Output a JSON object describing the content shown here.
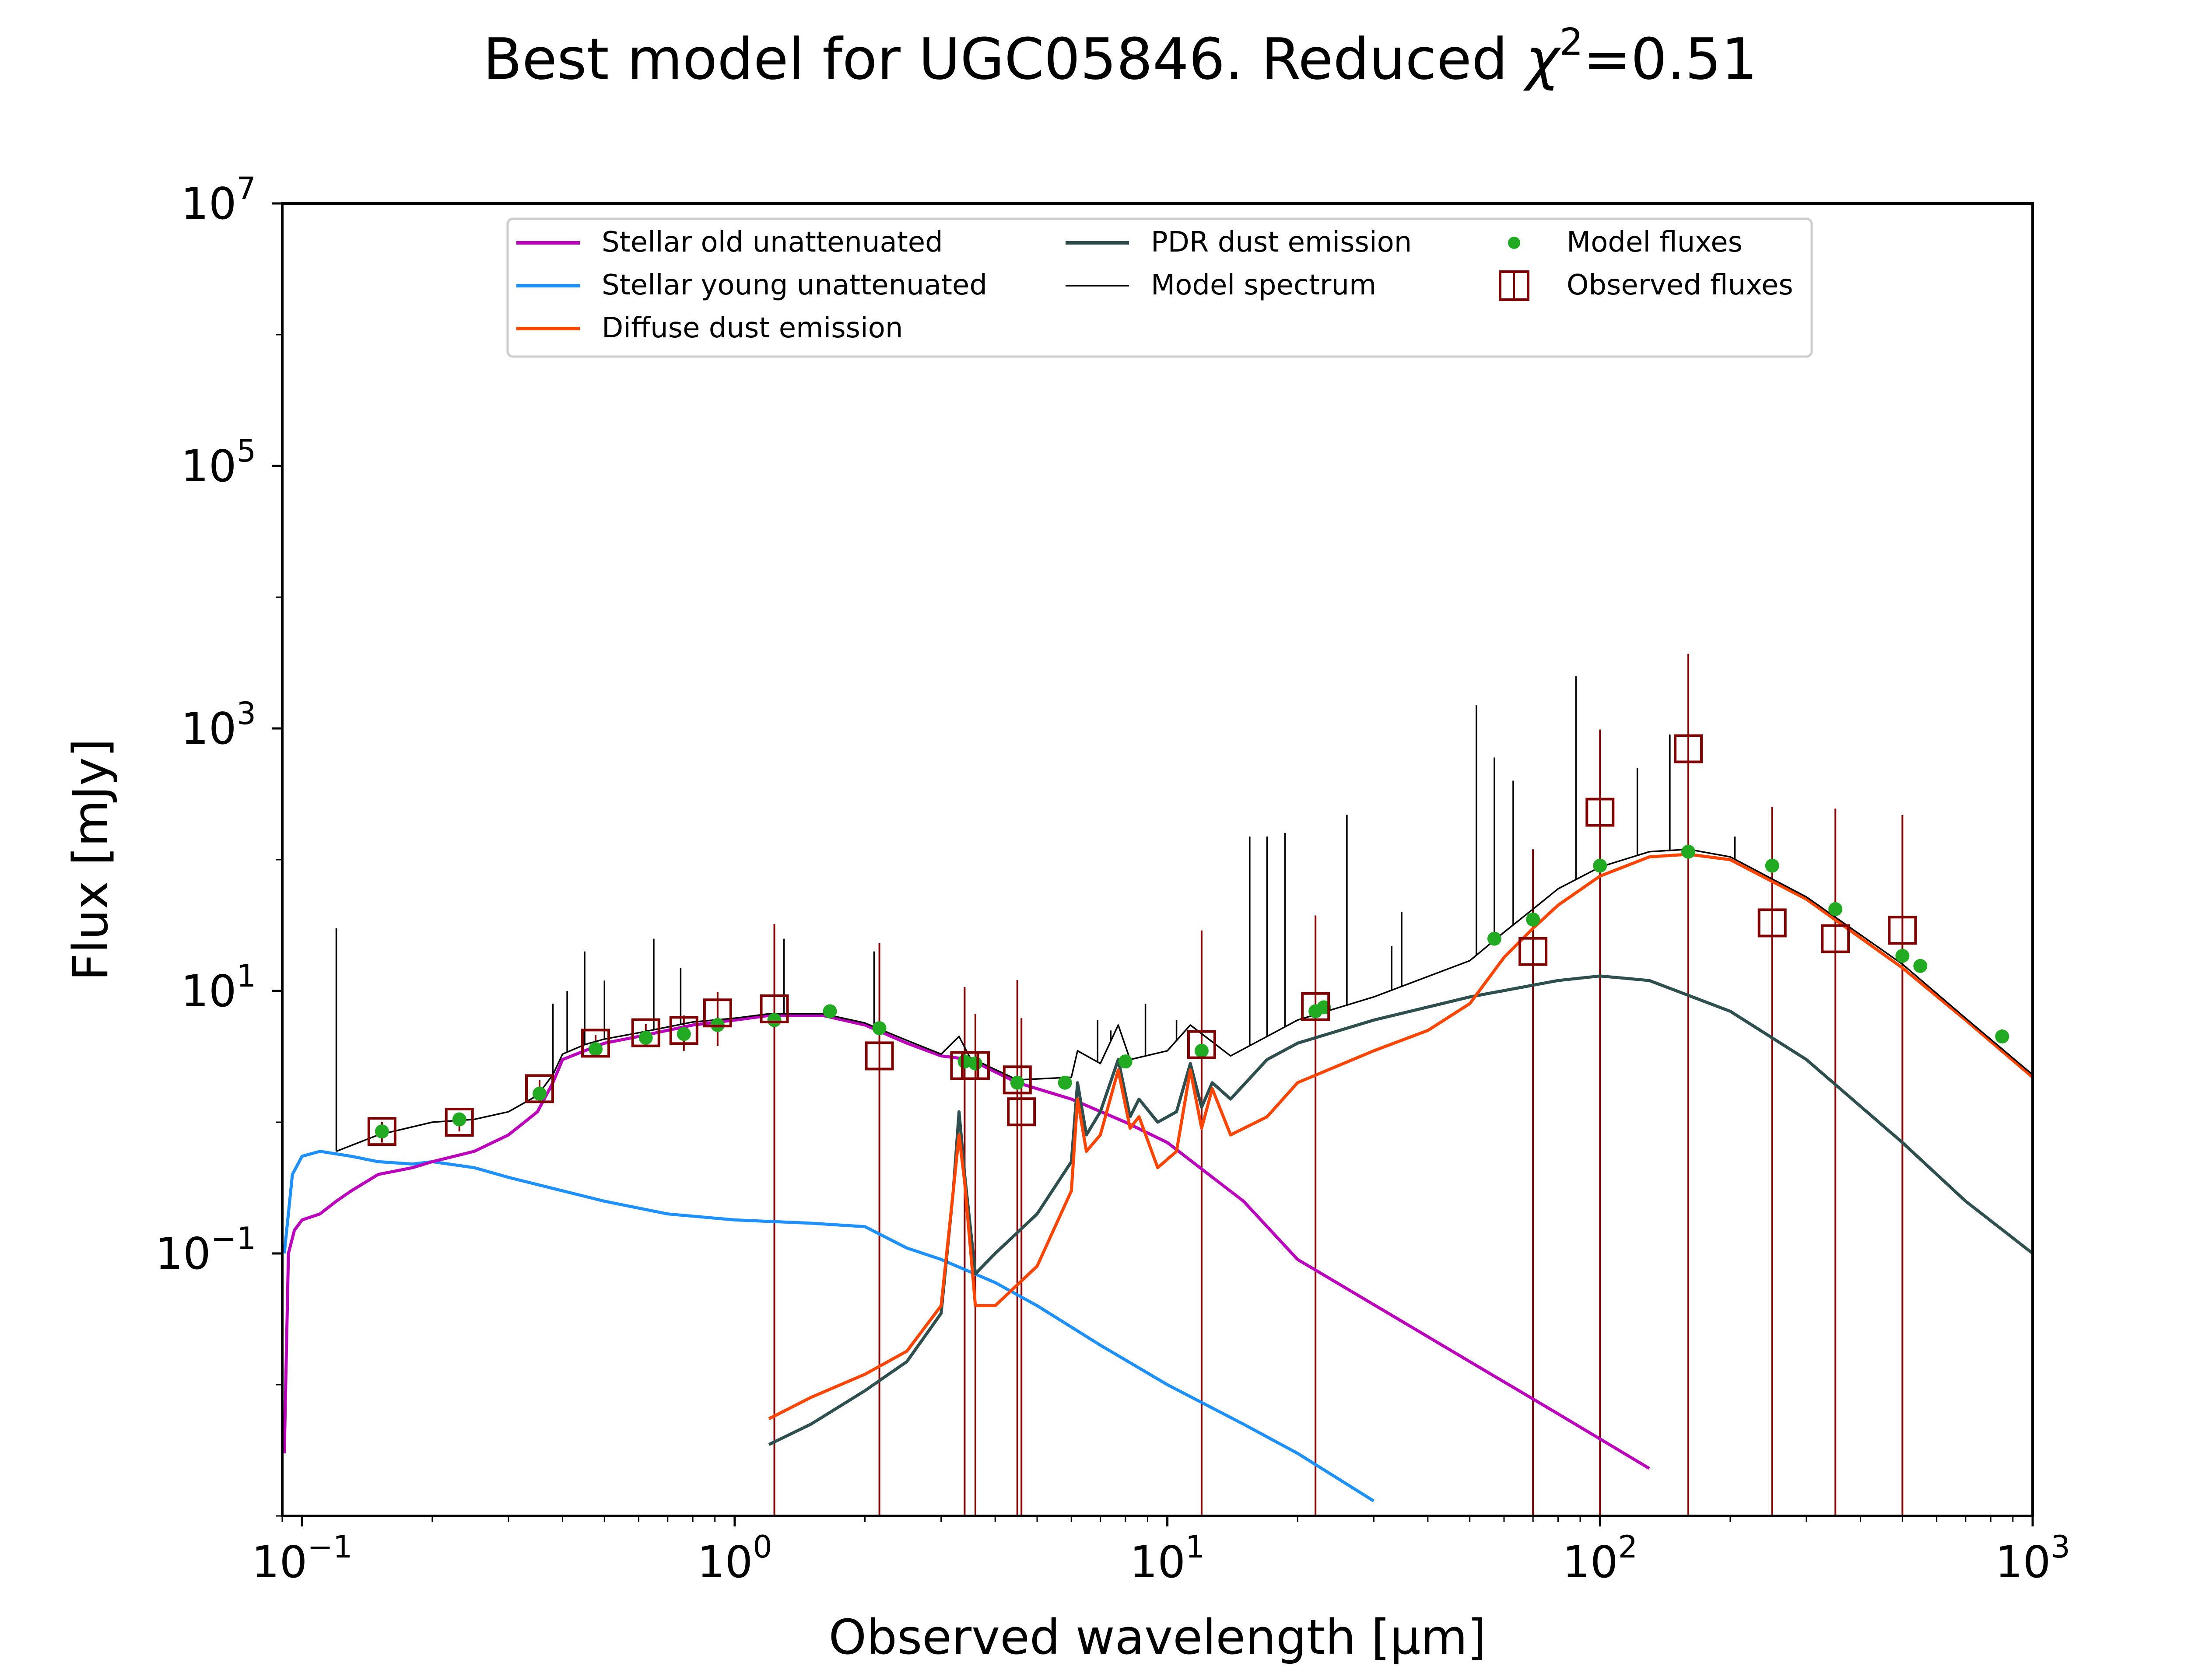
{
  "chart_data": {
    "type": "line",
    "title": "Best model for UGC05846. Reduced χ²=0.51",
    "title_parts": {
      "main": "Best model for UGC05846. Reduced ",
      "chi": "χ",
      "sup": "2",
      "tail": "=0.51"
    },
    "xlabel": "Observed wavelength [μm]",
    "ylabel": "Flux [mJy]",
    "xscale": "log",
    "yscale": "log",
    "xlim": [
      0.09,
      1000
    ],
    "ylim": [
      0.001,
      10000000
    ],
    "xticks": [
      {
        "value": 0.1,
        "base": "10",
        "exp": "−1"
      },
      {
        "value": 1,
        "base": "10",
        "exp": "0"
      },
      {
        "value": 10,
        "base": "10",
        "exp": "1"
      },
      {
        "value": 100,
        "base": "10",
        "exp": "2"
      },
      {
        "value": 1000,
        "base": "10",
        "exp": "3"
      }
    ],
    "yticks": [
      {
        "value": 0.1,
        "base": "10",
        "exp": "−1"
      },
      {
        "value": 10,
        "base": "10",
        "exp": "1"
      },
      {
        "value": 1000,
        "base": "10",
        "exp": "3"
      },
      {
        "value": 100000,
        "base": "10",
        "exp": "5"
      },
      {
        "value": 10000000,
        "base": "10",
        "exp": "7"
      }
    ],
    "grid": false,
    "legend_position": "top-center",
    "colors": {
      "old": "#bb00bb",
      "young": "#1e90ff",
      "diffuse": "#ff4500",
      "pdr": "#2f4f4f",
      "model": "#000000",
      "model_fluxes": "#22aa22",
      "observed": "#800000"
    },
    "series": [
      {
        "key": "old",
        "name": "Stellar old unattenuated",
        "color": "#bb00bb",
        "width": 7,
        "points": [
          [
            0.091,
            0.003
          ],
          [
            0.093,
            0.1
          ],
          [
            0.096,
            0.15
          ],
          [
            0.1,
            0.18
          ],
          [
            0.11,
            0.2
          ],
          [
            0.12,
            0.25
          ],
          [
            0.13,
            0.3
          ],
          [
            0.15,
            0.4
          ],
          [
            0.18,
            0.45
          ],
          [
            0.2,
            0.5
          ],
          [
            0.25,
            0.6
          ],
          [
            0.3,
            0.8
          ],
          [
            0.35,
            1.2
          ],
          [
            0.38,
            2
          ],
          [
            0.4,
            3
          ],
          [
            0.45,
            3.5
          ],
          [
            0.5,
            4
          ],
          [
            0.6,
            4.5
          ],
          [
            0.8,
            5.5
          ],
          [
            1.0,
            6
          ],
          [
            1.2,
            6.5
          ],
          [
            1.6,
            6.5
          ],
          [
            2.0,
            5.5
          ],
          [
            2.5,
            4
          ],
          [
            3.0,
            3.2
          ],
          [
            3.5,
            3
          ],
          [
            4.5,
            2
          ],
          [
            6,
            1.5
          ],
          [
            8,
            1
          ],
          [
            10,
            0.7
          ],
          [
            15,
            0.25
          ],
          [
            20,
            0.09
          ],
          [
            50,
            0.015
          ],
          [
            80,
            0.006
          ],
          [
            130,
            0.0023
          ]
        ]
      },
      {
        "key": "young",
        "name": "Stellar young unattenuated",
        "color": "#1e90ff",
        "width": 7,
        "points": [
          [
            0.091,
            0.1
          ],
          [
            0.095,
            0.4
          ],
          [
            0.1,
            0.55
          ],
          [
            0.11,
            0.6
          ],
          [
            0.13,
            0.55
          ],
          [
            0.15,
            0.5
          ],
          [
            0.18,
            0.48
          ],
          [
            0.2,
            0.5
          ],
          [
            0.25,
            0.45
          ],
          [
            0.3,
            0.38
          ],
          [
            0.4,
            0.3
          ],
          [
            0.5,
            0.25
          ],
          [
            0.7,
            0.2
          ],
          [
            1.0,
            0.18
          ],
          [
            1.5,
            0.17
          ],
          [
            2.0,
            0.16
          ],
          [
            2.5,
            0.11
          ],
          [
            3.0,
            0.09
          ],
          [
            4.0,
            0.06
          ],
          [
            5.0,
            0.04
          ],
          [
            7,
            0.02
          ],
          [
            10,
            0.01
          ],
          [
            15,
            0.005
          ],
          [
            20,
            0.003
          ],
          [
            30,
            0.0013
          ]
        ]
      },
      {
        "key": "diffuse",
        "name": "Diffuse dust emission",
        "color": "#ff4500",
        "width": 7,
        "points": [
          [
            1.2,
            0.0055
          ],
          [
            1.5,
            0.008
          ],
          [
            2.0,
            0.012
          ],
          [
            2.5,
            0.018
          ],
          [
            3.0,
            0.04
          ],
          [
            3.2,
            0.3
          ],
          [
            3.3,
            0.8
          ],
          [
            3.4,
            0.35
          ],
          [
            3.6,
            0.04
          ],
          [
            4.0,
            0.04
          ],
          [
            5,
            0.08
          ],
          [
            6,
            0.3
          ],
          [
            6.2,
            1.5
          ],
          [
            6.5,
            0.6
          ],
          [
            7,
            0.8
          ],
          [
            7.7,
            2.5
          ],
          [
            8.2,
            0.9
          ],
          [
            8.6,
            1.1
          ],
          [
            9.5,
            0.45
          ],
          [
            10.5,
            0.6
          ],
          [
            11.3,
            2.5
          ],
          [
            12,
            0.9
          ],
          [
            12.7,
            1.8
          ],
          [
            14,
            0.8
          ],
          [
            17,
            1.1
          ],
          [
            20,
            2
          ],
          [
            30,
            3.5
          ],
          [
            40,
            5
          ],
          [
            50,
            8
          ],
          [
            60,
            18
          ],
          [
            70,
            30
          ],
          [
            80,
            45
          ],
          [
            100,
            75
          ],
          [
            130,
            105
          ],
          [
            160,
            110
          ],
          [
            200,
            100
          ],
          [
            300,
            50
          ],
          [
            500,
            15
          ],
          [
            700,
            6
          ],
          [
            1000,
            2.2
          ]
        ]
      },
      {
        "key": "pdr",
        "name": "PDR dust emission",
        "color": "#2f4f4f",
        "width": 7,
        "points": [
          [
            1.2,
            0.0035
          ],
          [
            1.5,
            0.005
          ],
          [
            2.0,
            0.009
          ],
          [
            2.5,
            0.015
          ],
          [
            3.0,
            0.035
          ],
          [
            3.2,
            0.3
          ],
          [
            3.3,
            1.2
          ],
          [
            3.4,
            0.4
          ],
          [
            3.6,
            0.07
          ],
          [
            4.0,
            0.1
          ],
          [
            5,
            0.2
          ],
          [
            6,
            0.5
          ],
          [
            6.2,
            2
          ],
          [
            6.5,
            0.8
          ],
          [
            7,
            1.2
          ],
          [
            7.7,
            3
          ],
          [
            8.2,
            1.1
          ],
          [
            8.6,
            1.5
          ],
          [
            9.5,
            1
          ],
          [
            10.5,
            1.2
          ],
          [
            11.3,
            2.8
          ],
          [
            12,
            1.3
          ],
          [
            12.7,
            2
          ],
          [
            14,
            1.5
          ],
          [
            17,
            3
          ],
          [
            20,
            4
          ],
          [
            30,
            6
          ],
          [
            50,
            9
          ],
          [
            80,
            12
          ],
          [
            100,
            13
          ],
          [
            130,
            12
          ],
          [
            200,
            7
          ],
          [
            300,
            3
          ],
          [
            500,
            0.7
          ],
          [
            700,
            0.25
          ],
          [
            1000,
            0.1
          ]
        ]
      },
      {
        "key": "model",
        "name": "Model spectrum",
        "color": "#000000",
        "width": 3.5,
        "points": [
          [
            0.12,
            0.6
          ],
          [
            0.15,
            0.8
          ],
          [
            0.2,
            1
          ],
          [
            0.25,
            1.05
          ],
          [
            0.3,
            1.2
          ],
          [
            0.35,
            1.6
          ],
          [
            0.38,
            2.3
          ],
          [
            0.4,
            3.3
          ],
          [
            0.45,
            3.9
          ],
          [
            0.5,
            4.3
          ],
          [
            0.6,
            4.8
          ],
          [
            0.8,
            5.8
          ],
          [
            1.0,
            6.2
          ],
          [
            1.2,
            6.7
          ],
          [
            1.6,
            6.7
          ],
          [
            2.0,
            5.7
          ],
          [
            2.5,
            4.2
          ],
          [
            3.0,
            3.3
          ],
          [
            3.3,
            4.5
          ],
          [
            3.5,
            3.1
          ],
          [
            4.5,
            2.1
          ],
          [
            6,
            2.2
          ],
          [
            6.2,
            3.5
          ],
          [
            7,
            2.8
          ],
          [
            7.7,
            5.5
          ],
          [
            8.2,
            3
          ],
          [
            10,
            3.5
          ],
          [
            11.3,
            5.5
          ],
          [
            14,
            3.2
          ],
          [
            17,
            4.5
          ],
          [
            20,
            6
          ],
          [
            30,
            9
          ],
          [
            50,
            17
          ],
          [
            60,
            28
          ],
          [
            70,
            42
          ],
          [
            80,
            60
          ],
          [
            100,
            88
          ],
          [
            130,
            115
          ],
          [
            160,
            120
          ],
          [
            200,
            105
          ],
          [
            300,
            52
          ],
          [
            500,
            16
          ],
          [
            700,
            6.2
          ],
          [
            1000,
            2.3
          ]
        ],
        "lines": [
          [
            0.12,
            30
          ],
          [
            0.38,
            8
          ],
          [
            0.41,
            10
          ],
          [
            0.45,
            20
          ],
          [
            0.5,
            12
          ],
          [
            0.65,
            25
          ],
          [
            0.75,
            15
          ],
          [
            1.3,
            25
          ],
          [
            2.1,
            20
          ],
          [
            6.9,
            6
          ],
          [
            7.4,
            5
          ],
          [
            8.9,
            8
          ],
          [
            10.5,
            6
          ],
          [
            15.5,
            150
          ],
          [
            17,
            150
          ],
          [
            18.7,
            160
          ],
          [
            26,
            220
          ],
          [
            33,
            22
          ],
          [
            34.8,
            40
          ],
          [
            51.8,
            1500
          ],
          [
            57,
            600
          ],
          [
            63,
            400
          ],
          [
            88,
            2500
          ],
          [
            122,
            500
          ],
          [
            145,
            900
          ],
          [
            205,
            150
          ]
        ]
      }
    ],
    "model_fluxes": {
      "name": "Model fluxes",
      "points": [
        [
          0.153,
          0.85
        ],
        [
          0.231,
          1.05
        ],
        [
          0.354,
          1.65
        ],
        [
          0.477,
          3.6
        ],
        [
          0.623,
          4.4
        ],
        [
          0.763,
          4.7
        ],
        [
          0.913,
          5.5
        ],
        [
          1.235,
          6
        ],
        [
          1.66,
          7
        ],
        [
          2.16,
          5.2
        ],
        [
          3.4,
          2.9
        ],
        [
          3.6,
          2.8
        ],
        [
          4.5,
          2
        ],
        [
          5.8,
          2
        ],
        [
          8.0,
          2.9
        ],
        [
          12,
          3.5
        ],
        [
          22,
          7
        ],
        [
          23,
          7.5
        ],
        [
          57,
          25
        ],
        [
          70,
          35
        ],
        [
          100,
          90
        ],
        [
          160,
          115
        ],
        [
          250,
          90
        ],
        [
          350,
          42
        ],
        [
          500,
          18.5
        ],
        [
          550,
          15.5
        ],
        [
          850,
          4.5
        ]
      ]
    },
    "observed_fluxes": {
      "name": "Observed fluxes",
      "points": [
        [
          0.153,
          0.85,
          0.15
        ],
        [
          0.231,
          1.0,
          0.15
        ],
        [
          0.354,
          1.8,
          0.3
        ],
        [
          0.477,
          4.0,
          0.6
        ],
        [
          0.623,
          4.8,
          0.8
        ],
        [
          0.763,
          5.0,
          1.5
        ],
        [
          0.913,
          6.8,
          3
        ],
        [
          1.235,
          7.3,
          25
        ],
        [
          2.16,
          3.2,
          20
        ],
        [
          3.4,
          2.7,
          8
        ],
        [
          3.6,
          2.7,
          4
        ],
        [
          4.5,
          2.1,
          10
        ],
        [
          4.6,
          1.2,
          5
        ],
        [
          12,
          3.9,
          25
        ],
        [
          22,
          7.6,
          30
        ],
        [
          70,
          20,
          100
        ],
        [
          100,
          230,
          750
        ],
        [
          160,
          700,
          3000
        ],
        [
          250,
          33,
          220
        ],
        [
          350,
          25,
          220
        ],
        [
          500,
          29,
          190
        ]
      ]
    }
  }
}
